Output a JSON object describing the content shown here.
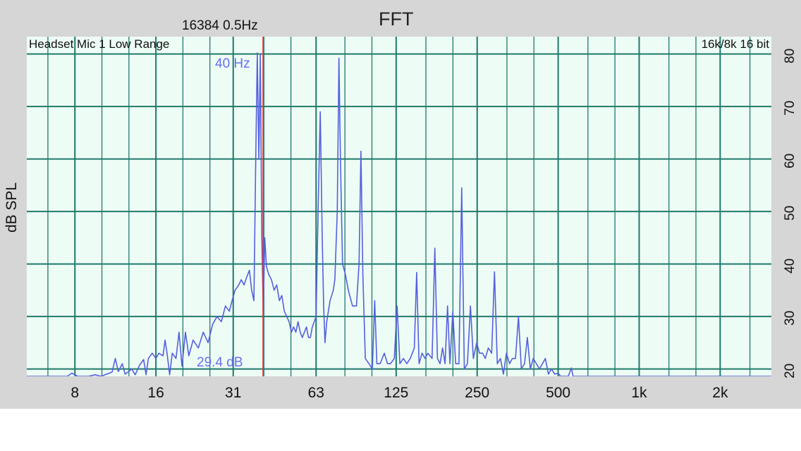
{
  "window": {
    "title": "FFT",
    "info": "16384  0.5Hz",
    "input_label": "Headset Mic 1 Low Range",
    "format_label": "16k/8k 16 bit",
    "ylabel": "dB SPL",
    "peak_freq_label": "40 Hz",
    "cursor_db_label": "29.4 dB"
  },
  "colors": {
    "trace": "#5560dd",
    "grid": "#1f7a6a",
    "cursor": "#dd3333",
    "plot_bg": "#eefcf6"
  },
  "chart_data": {
    "type": "line",
    "x_scale": "log",
    "xlim": [
      5.3,
      3100
    ],
    "ylim": [
      18.6,
      83.3
    ],
    "x_tick_labels": [
      "8",
      "16",
      "31",
      "63",
      "125",
      "250",
      "500",
      "1k",
      "2k"
    ],
    "x_tick_values": [
      8,
      16,
      31,
      63,
      125,
      250,
      500,
      1000,
      2000
    ],
    "y_tick_labels": [
      "80",
      "70",
      "60",
      "50",
      "40",
      "30",
      "20"
    ],
    "y_tick_values": [
      80,
      70,
      60,
      50,
      40,
      30,
      20
    ],
    "grid": true,
    "cursor_x": 40,
    "series": [
      {
        "values": [
          [
            5.3,
            18.6
          ],
          [
            7.5,
            18.6
          ],
          [
            7.8,
            19.2
          ],
          [
            8.2,
            18.6
          ],
          [
            9,
            18.6
          ],
          [
            9.5,
            18.9
          ],
          [
            10,
            18.6
          ],
          [
            11,
            19.4
          ],
          [
            11.3,
            22
          ],
          [
            11.6,
            19.5
          ],
          [
            12,
            21
          ],
          [
            12.3,
            19
          ],
          [
            13,
            20
          ],
          [
            13.4,
            18.9
          ],
          [
            13.9,
            20.7
          ],
          [
            14.4,
            21.8
          ],
          [
            14.7,
            18.9
          ],
          [
            15,
            22
          ],
          [
            15.5,
            23
          ],
          [
            16,
            22
          ],
          [
            16.4,
            23
          ],
          [
            17,
            22.5
          ],
          [
            17.3,
            25.5
          ],
          [
            17.6,
            23
          ],
          [
            18,
            18.9
          ],
          [
            18.4,
            23
          ],
          [
            19,
            22
          ],
          [
            19.5,
            27
          ],
          [
            20,
            20.5
          ],
          [
            20.6,
            27
          ],
          [
            21.2,
            22.5
          ],
          [
            22,
            25.5
          ],
          [
            23,
            24
          ],
          [
            24,
            27
          ],
          [
            25,
            25
          ],
          [
            26,
            28.5
          ],
          [
            27,
            30
          ],
          [
            28,
            29
          ],
          [
            29,
            32
          ],
          [
            30,
            31
          ],
          [
            30.7,
            33
          ],
          [
            31.5,
            35
          ],
          [
            32.5,
            36
          ],
          [
            33.2,
            37
          ],
          [
            34,
            36
          ],
          [
            34.8,
            37.5
          ],
          [
            35.6,
            38.8
          ],
          [
            36.3,
            35
          ],
          [
            37,
            33
          ],
          [
            37.6,
            60
          ],
          [
            38.1,
            80.2
          ],
          [
            38.6,
            60
          ],
          [
            39.1,
            80
          ],
          [
            39.6,
            45
          ],
          [
            40.1,
            31
          ],
          [
            40.6,
            45
          ],
          [
            41.2,
            39.5
          ],
          [
            42,
            38
          ],
          [
            43,
            37
          ],
          [
            44,
            35
          ],
          [
            45,
            36
          ],
          [
            46,
            33
          ],
          [
            47,
            34
          ],
          [
            48,
            31
          ],
          [
            49,
            30
          ],
          [
            50,
            29
          ],
          [
            51,
            27
          ],
          [
            52,
            28
          ],
          [
            53,
            27
          ],
          [
            54,
            29
          ],
          [
            55,
            27
          ],
          [
            56,
            26
          ],
          [
            57,
            27
          ],
          [
            58,
            28
          ],
          [
            59,
            26
          ],
          [
            60,
            26
          ],
          [
            61,
            28
          ],
          [
            62,
            29
          ],
          [
            63,
            30
          ],
          [
            64.2,
            52
          ],
          [
            65.3,
            69
          ],
          [
            66.4,
            45
          ],
          [
            67.2,
            32
          ],
          [
            68,
            25
          ],
          [
            69,
            29
          ],
          [
            70,
            31
          ],
          [
            71,
            33
          ],
          [
            72,
            34
          ],
          [
            73,
            35
          ],
          [
            74,
            37
          ],
          [
            75.5,
            50
          ],
          [
            76.6,
            79.2
          ],
          [
            77.6,
            60
          ],
          [
            79,
            40
          ],
          [
            81,
            38
          ],
          [
            83,
            35
          ],
          [
            86,
            32
          ],
          [
            89,
            32
          ],
          [
            91,
            40
          ],
          [
            92.5,
            61.5
          ],
          [
            94,
            38
          ],
          [
            96,
            22
          ],
          [
            99,
            21
          ],
          [
            102,
            20
          ],
          [
            104,
            33
          ],
          [
            106,
            21
          ],
          [
            109,
            21
          ],
          [
            113,
            23
          ],
          [
            116,
            21
          ],
          [
            119,
            21
          ],
          [
            123,
            22
          ],
          [
            126,
            32
          ],
          [
            129,
            21
          ],
          [
            133,
            22
          ],
          [
            137,
            21
          ],
          [
            141,
            22
          ],
          [
            146,
            24
          ],
          [
            149,
            38.4
          ],
          [
            152,
            21
          ],
          [
            156,
            23
          ],
          [
            160,
            22
          ],
          [
            164,
            23
          ],
          [
            170,
            22
          ],
          [
            174,
            43
          ],
          [
            178,
            22
          ],
          [
            182,
            21
          ],
          [
            186,
            24
          ],
          [
            190,
            21
          ],
          [
            194,
            32
          ],
          [
            198,
            21
          ],
          [
            203,
            31
          ],
          [
            208,
            21
          ],
          [
            214,
            21
          ],
          [
            219,
            54.5
          ],
          [
            224,
            20
          ],
          [
            230,
            21
          ],
          [
            236,
            32
          ],
          [
            242,
            22
          ],
          [
            249,
            25
          ],
          [
            255,
            23
          ],
          [
            262,
            23
          ],
          [
            268,
            22
          ],
          [
            275,
            24
          ],
          [
            283,
            23
          ],
          [
            290,
            38.5
          ],
          [
            297,
            21
          ],
          [
            305,
            22
          ],
          [
            313,
            19
          ],
          [
            321,
            23
          ],
          [
            330,
            21
          ],
          [
            338,
            22
          ],
          [
            347,
            22
          ],
          [
            356,
            30
          ],
          [
            365,
            20
          ],
          [
            375,
            21
          ],
          [
            384,
            26
          ],
          [
            394,
            20
          ],
          [
            404,
            22
          ],
          [
            415,
            21
          ],
          [
            426,
            20
          ],
          [
            437,
            21
          ],
          [
            448,
            22
          ],
          [
            460,
            19
          ],
          [
            472,
            20
          ],
          [
            486,
            19
          ],
          [
            500,
            19.2
          ],
          [
            510,
            18.6
          ],
          [
            545,
            18.6
          ],
          [
            560,
            20.2
          ],
          [
            568,
            18.6
          ],
          [
            600,
            18.6
          ],
          [
            3100,
            18.6
          ]
        ]
      }
    ]
  }
}
